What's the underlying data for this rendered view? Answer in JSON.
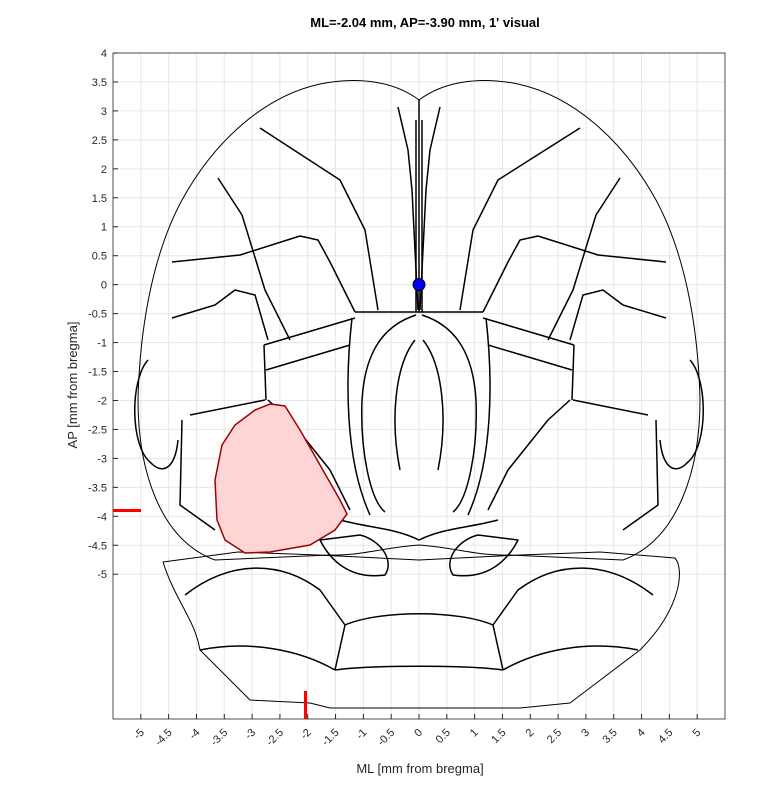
{
  "chart_data": {
    "type": "scatter",
    "title": "ML=-2.04 mm, AP=-3.90 mm, 1' visual",
    "xlabel": "ML [mm from bregma]",
    "ylabel": "AP [mm from bregma]",
    "xlim": [
      -5.5,
      5.5
    ],
    "ylim": [
      -7.5,
      4
    ],
    "grid": true,
    "x_ticks": [
      -5,
      -4.5,
      -4,
      -3.5,
      -3,
      -2.5,
      -2,
      -1.5,
      -1,
      -0.5,
      0,
      0.5,
      1,
      1.5,
      2,
      2.5,
      3,
      3.5,
      4,
      4.5,
      5
    ],
    "y_ticks": [
      4,
      3.5,
      3,
      2.5,
      2,
      1.5,
      1,
      0.5,
      0,
      -0.5,
      -1,
      -1.5,
      -2,
      -2.5,
      -3,
      -3.5,
      -4,
      -4.5,
      -5
    ],
    "bregma_point": {
      "ml": 0,
      "ap": 0,
      "color": "#0000ff"
    },
    "selected_position": {
      "ml": -2.04,
      "ap": -3.9,
      "marker_color": "#ff0000"
    },
    "highlighted_region": {
      "name": "1' visual",
      "fill": "#ffd4d4",
      "stroke": "#a00000"
    }
  }
}
